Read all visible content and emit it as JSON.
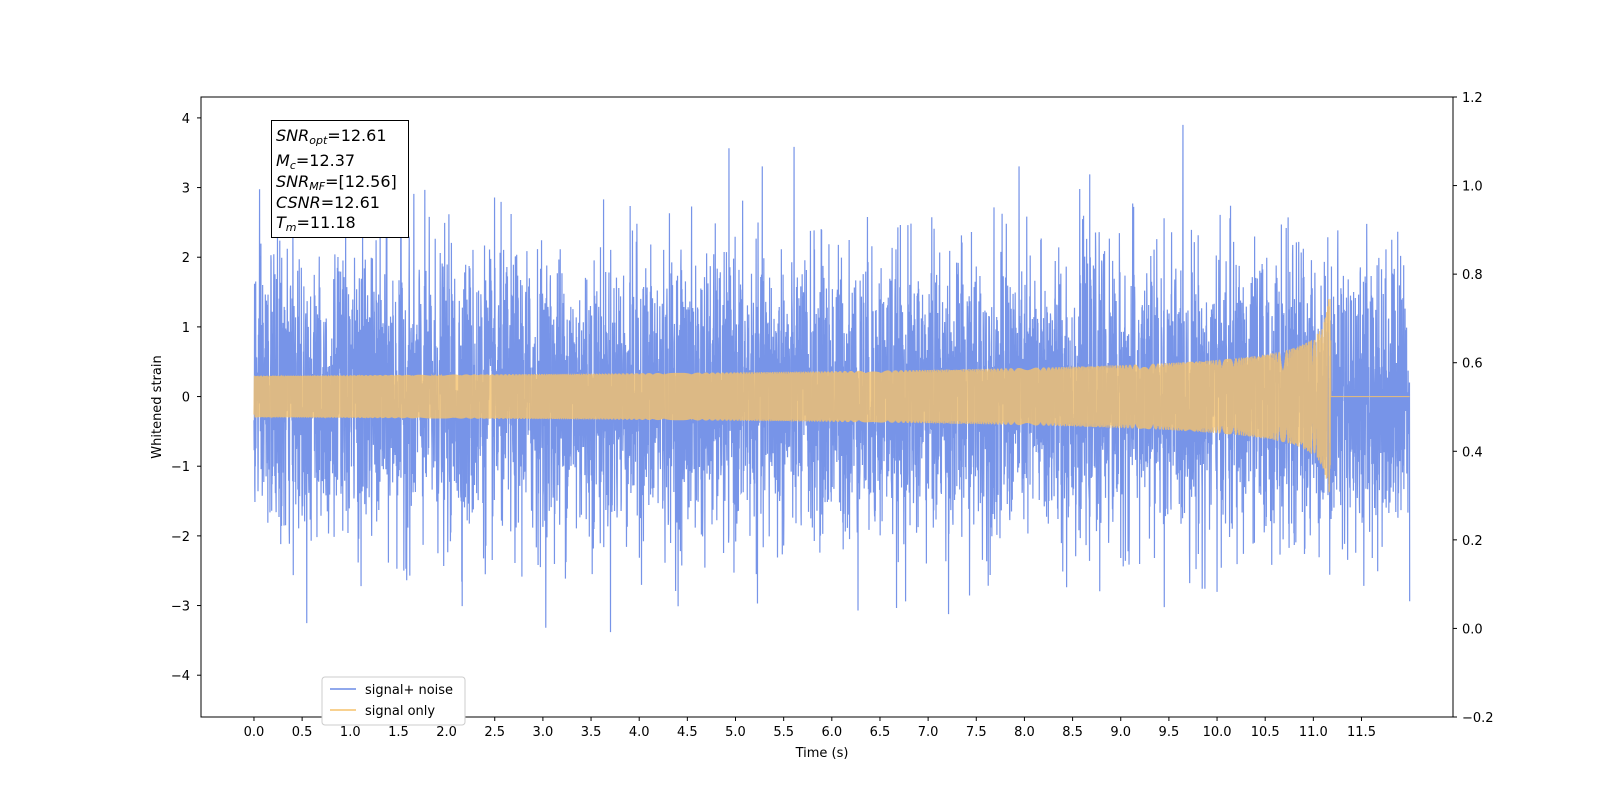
{
  "chart_data": {
    "type": "line",
    "xlabel": "Time (s)",
    "ylabel": "Whitened strain",
    "xlim": [
      -0.55,
      12.45
    ],
    "ylim": [
      -4.6,
      4.3
    ],
    "y2lim": [
      -0.2,
      1.2
    ],
    "x_ticks": [
      "0.0",
      "0.5",
      "1.0",
      "1.5",
      "2.0",
      "2.5",
      "3.0",
      "3.5",
      "4.0",
      "4.5",
      "5.0",
      "5.5",
      "6.0",
      "6.5",
      "7.0",
      "7.5",
      "8.0",
      "8.5",
      "9.0",
      "9.5",
      "10.0",
      "10.5",
      "11.0",
      "11.5"
    ],
    "y_ticks": [
      "4",
      "3",
      "2",
      "1",
      "0",
      "−1",
      "−2",
      "−3",
      "−4"
    ],
    "y2_ticks": [
      "1.2",
      "1.0",
      "0.8",
      "0.6",
      "0.4",
      "0.2",
      "0.0",
      "−0.2"
    ],
    "series": [
      {
        "name": "signal+ noise",
        "color": "#6b8be6",
        "x_range": [
          0.0,
          12.0
        ],
        "noise_sigma": 1.0,
        "y_max": 3.9,
        "y_min": -4.2
      },
      {
        "name": "signal only",
        "color": "#f5c26b",
        "x_range": [
          0.0,
          11.18
        ],
        "peak_amplitude": 2.3,
        "peak_time": 11.18
      }
    ],
    "legend": {
      "placement": "lower-left",
      "labels": [
        "signal+ noise",
        "signal only"
      ]
    },
    "annotation": {
      "snr_opt_label": "SNR",
      "snr_opt_sub": "opt",
      "snr_opt_value": "=12.61",
      "mc_label": "M",
      "mc_sub": "c",
      "mc_value": "=12.37",
      "snr_mf_label": "SNR",
      "snr_mf_sub": "MF",
      "snr_mf_value": "=[12.56]",
      "csnr_label": "CSNR",
      "csnr_value": "=12.61",
      "tm_label": "T",
      "tm_sub": "m",
      "tm_value": "=11.18"
    }
  }
}
